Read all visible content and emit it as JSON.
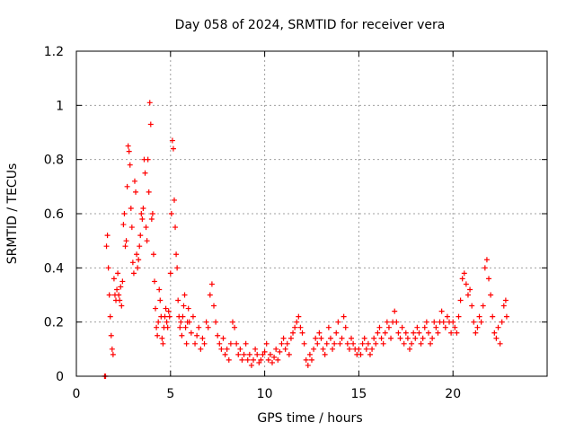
{
  "chart_data": {
    "type": "scatter",
    "title": "Day 058 of 2024, SRMTID for receiver vera",
    "xlabel": "GPS time / hours",
    "ylabel": "SRMTID / TECUs",
    "xlim": [
      0,
      25
    ],
    "ylim": [
      0,
      1.2
    ],
    "x_ticks": [
      0,
      5,
      10,
      15,
      20
    ],
    "x_tick_labels": [
      "0",
      "5",
      "10",
      "15",
      "20"
    ],
    "y_ticks": [
      0,
      0.2,
      0.4,
      0.6,
      0.8,
      1.0,
      1.2
    ],
    "y_tick_labels": [
      "0",
      "0.2",
      "0.4",
      "0.6",
      "0.8",
      "1",
      "1.2"
    ],
    "grid": true,
    "marker": "+",
    "series": [
      {
        "name": "SRMTID",
        "color": "#ff0000",
        "points": [
          [
            1.5,
            0.0
          ],
          [
            1.55,
            0.0
          ],
          [
            1.6,
            0.48
          ],
          [
            1.65,
            0.52
          ],
          [
            1.7,
            0.4
          ],
          [
            1.75,
            0.3
          ],
          [
            1.8,
            0.22
          ],
          [
            1.85,
            0.15
          ],
          [
            1.9,
            0.1
          ],
          [
            1.95,
            0.08
          ],
          [
            2.0,
            0.36
          ],
          [
            2.05,
            0.3
          ],
          [
            2.1,
            0.28
          ],
          [
            2.15,
            0.32
          ],
          [
            2.2,
            0.38
          ],
          [
            2.25,
            0.3
          ],
          [
            2.3,
            0.28
          ],
          [
            2.35,
            0.33
          ],
          [
            2.4,
            0.26
          ],
          [
            2.45,
            0.35
          ],
          [
            2.5,
            0.56
          ],
          [
            2.55,
            0.6
          ],
          [
            2.6,
            0.48
          ],
          [
            2.65,
            0.5
          ],
          [
            2.7,
            0.7
          ],
          [
            2.75,
            0.85
          ],
          [
            2.8,
            0.83
          ],
          [
            2.85,
            0.78
          ],
          [
            2.9,
            0.62
          ],
          [
            2.95,
            0.55
          ],
          [
            3.0,
            0.42
          ],
          [
            3.05,
            0.38
          ],
          [
            3.1,
            0.72
          ],
          [
            3.15,
            0.68
          ],
          [
            3.2,
            0.45
          ],
          [
            3.25,
            0.4
          ],
          [
            3.3,
            0.43
          ],
          [
            3.35,
            0.48
          ],
          [
            3.4,
            0.52
          ],
          [
            3.45,
            0.6
          ],
          [
            3.5,
            0.58
          ],
          [
            3.55,
            0.62
          ],
          [
            3.6,
            0.8
          ],
          [
            3.65,
            0.75
          ],
          [
            3.7,
            0.55
          ],
          [
            3.75,
            0.5
          ],
          [
            3.8,
            0.8
          ],
          [
            3.85,
            0.68
          ],
          [
            3.9,
            1.01
          ],
          [
            3.95,
            0.93
          ],
          [
            4.0,
            0.58
          ],
          [
            4.05,
            0.6
          ],
          [
            4.1,
            0.45
          ],
          [
            4.15,
            0.35
          ],
          [
            4.2,
            0.25
          ],
          [
            4.25,
            0.18
          ],
          [
            4.3,
            0.15
          ],
          [
            4.35,
            0.2
          ],
          [
            4.4,
            0.32
          ],
          [
            4.45,
            0.28
          ],
          [
            4.5,
            0.22
          ],
          [
            4.55,
            0.14
          ],
          [
            4.6,
            0.12
          ],
          [
            4.65,
            0.18
          ],
          [
            4.7,
            0.22
          ],
          [
            4.75,
            0.25
          ],
          [
            4.8,
            0.2
          ],
          [
            4.85,
            0.18
          ],
          [
            4.9,
            0.24
          ],
          [
            4.95,
            0.22
          ],
          [
            5.0,
            0.38
          ],
          [
            5.05,
            0.6
          ],
          [
            5.1,
            0.87
          ],
          [
            5.15,
            0.84
          ],
          [
            5.2,
            0.65
          ],
          [
            5.25,
            0.55
          ],
          [
            5.3,
            0.45
          ],
          [
            5.35,
            0.4
          ],
          [
            5.4,
            0.28
          ],
          [
            5.45,
            0.22
          ],
          [
            5.5,
            0.18
          ],
          [
            5.55,
            0.2
          ],
          [
            5.6,
            0.15
          ],
          [
            5.65,
            0.22
          ],
          [
            5.7,
            0.26
          ],
          [
            5.75,
            0.3
          ],
          [
            5.8,
            0.18
          ],
          [
            5.85,
            0.12
          ],
          [
            5.9,
            0.2
          ],
          [
            5.95,
            0.25
          ],
          [
            6.0,
            0.2
          ],
          [
            6.1,
            0.16
          ],
          [
            6.2,
            0.22
          ],
          [
            6.3,
            0.12
          ],
          [
            6.4,
            0.15
          ],
          [
            6.5,
            0.18
          ],
          [
            6.6,
            0.1
          ],
          [
            6.7,
            0.14
          ],
          [
            6.8,
            0.12
          ],
          [
            6.9,
            0.2
          ],
          [
            7.0,
            0.18
          ],
          [
            7.1,
            0.3
          ],
          [
            7.2,
            0.34
          ],
          [
            7.3,
            0.26
          ],
          [
            7.4,
            0.2
          ],
          [
            7.5,
            0.15
          ],
          [
            7.6,
            0.12
          ],
          [
            7.7,
            0.1
          ],
          [
            7.8,
            0.14
          ],
          [
            7.9,
            0.08
          ],
          [
            8.0,
            0.1
          ],
          [
            8.1,
            0.06
          ],
          [
            8.2,
            0.12
          ],
          [
            8.3,
            0.2
          ],
          [
            8.4,
            0.18
          ],
          [
            8.5,
            0.12
          ],
          [
            8.6,
            0.08
          ],
          [
            8.7,
            0.1
          ],
          [
            8.8,
            0.06
          ],
          [
            8.9,
            0.08
          ],
          [
            9.0,
            0.12
          ],
          [
            9.1,
            0.06
          ],
          [
            9.2,
            0.08
          ],
          [
            9.3,
            0.04
          ],
          [
            9.4,
            0.06
          ],
          [
            9.5,
            0.1
          ],
          [
            9.6,
            0.08
          ],
          [
            9.7,
            0.05
          ],
          [
            9.8,
            0.06
          ],
          [
            9.9,
            0.08
          ],
          [
            10.0,
            0.09
          ],
          [
            10.1,
            0.12
          ],
          [
            10.2,
            0.06
          ],
          [
            10.3,
            0.08
          ],
          [
            10.4,
            0.05
          ],
          [
            10.5,
            0.07
          ],
          [
            10.6,
            0.1
          ],
          [
            10.7,
            0.06
          ],
          [
            10.8,
            0.09
          ],
          [
            10.9,
            0.12
          ],
          [
            11.0,
            0.14
          ],
          [
            11.1,
            0.1
          ],
          [
            11.2,
            0.12
          ],
          [
            11.3,
            0.08
          ],
          [
            11.4,
            0.14
          ],
          [
            11.5,
            0.16
          ],
          [
            11.6,
            0.18
          ],
          [
            11.7,
            0.2
          ],
          [
            11.8,
            0.22
          ],
          [
            11.9,
            0.18
          ],
          [
            12.0,
            0.16
          ],
          [
            12.1,
            0.12
          ],
          [
            12.2,
            0.06
          ],
          [
            12.3,
            0.04
          ],
          [
            12.4,
            0.08
          ],
          [
            12.5,
            0.06
          ],
          [
            12.6,
            0.1
          ],
          [
            12.7,
            0.14
          ],
          [
            12.8,
            0.12
          ],
          [
            12.9,
            0.16
          ],
          [
            13.0,
            0.14
          ],
          [
            13.1,
            0.1
          ],
          [
            13.2,
            0.08
          ],
          [
            13.3,
            0.12
          ],
          [
            13.4,
            0.18
          ],
          [
            13.5,
            0.14
          ],
          [
            13.6,
            0.1
          ],
          [
            13.7,
            0.12
          ],
          [
            13.8,
            0.16
          ],
          [
            13.9,
            0.2
          ],
          [
            14.0,
            0.12
          ],
          [
            14.1,
            0.14
          ],
          [
            14.2,
            0.22
          ],
          [
            14.3,
            0.18
          ],
          [
            14.4,
            0.12
          ],
          [
            14.5,
            0.1
          ],
          [
            14.6,
            0.14
          ],
          [
            14.7,
            0.12
          ],
          [
            14.8,
            0.1
          ],
          [
            14.9,
            0.08
          ],
          [
            15.0,
            0.1
          ],
          [
            15.1,
            0.08
          ],
          [
            15.2,
            0.12
          ],
          [
            15.3,
            0.14
          ],
          [
            15.4,
            0.1
          ],
          [
            15.5,
            0.12
          ],
          [
            15.6,
            0.08
          ],
          [
            15.7,
            0.1
          ],
          [
            15.8,
            0.14
          ],
          [
            15.9,
            0.12
          ],
          [
            16.0,
            0.16
          ],
          [
            16.1,
            0.18
          ],
          [
            16.2,
            0.14
          ],
          [
            16.3,
            0.12
          ],
          [
            16.4,
            0.16
          ],
          [
            16.5,
            0.2
          ],
          [
            16.6,
            0.18
          ],
          [
            16.7,
            0.14
          ],
          [
            16.8,
            0.2
          ],
          [
            16.9,
            0.24
          ],
          [
            17.0,
            0.2
          ],
          [
            17.1,
            0.16
          ],
          [
            17.2,
            0.14
          ],
          [
            17.3,
            0.18
          ],
          [
            17.4,
            0.12
          ],
          [
            17.5,
            0.16
          ],
          [
            17.6,
            0.14
          ],
          [
            17.7,
            0.1
          ],
          [
            17.8,
            0.12
          ],
          [
            17.9,
            0.16
          ],
          [
            18.0,
            0.14
          ],
          [
            18.1,
            0.18
          ],
          [
            18.2,
            0.16
          ],
          [
            18.3,
            0.12
          ],
          [
            18.4,
            0.14
          ],
          [
            18.5,
            0.18
          ],
          [
            18.6,
            0.2
          ],
          [
            18.7,
            0.16
          ],
          [
            18.8,
            0.12
          ],
          [
            18.9,
            0.14
          ],
          [
            19.0,
            0.2
          ],
          [
            19.1,
            0.18
          ],
          [
            19.2,
            0.16
          ],
          [
            19.3,
            0.2
          ],
          [
            19.4,
            0.24
          ],
          [
            19.5,
            0.2
          ],
          [
            19.6,
            0.18
          ],
          [
            19.7,
            0.22
          ],
          [
            19.8,
            0.2
          ],
          [
            19.9,
            0.16
          ],
          [
            20.0,
            0.2
          ],
          [
            20.1,
            0.18
          ],
          [
            20.2,
            0.16
          ],
          [
            20.3,
            0.22
          ],
          [
            20.4,
            0.28
          ],
          [
            20.5,
            0.36
          ],
          [
            20.6,
            0.38
          ],
          [
            20.7,
            0.34
          ],
          [
            20.8,
            0.3
          ],
          [
            20.9,
            0.32
          ],
          [
            21.0,
            0.26
          ],
          [
            21.1,
            0.2
          ],
          [
            21.2,
            0.16
          ],
          [
            21.3,
            0.18
          ],
          [
            21.4,
            0.22
          ],
          [
            21.5,
            0.2
          ],
          [
            21.6,
            0.26
          ],
          [
            21.7,
            0.4
          ],
          [
            21.8,
            0.43
          ],
          [
            21.9,
            0.36
          ],
          [
            22.0,
            0.3
          ],
          [
            22.1,
            0.22
          ],
          [
            22.2,
            0.16
          ],
          [
            22.3,
            0.14
          ],
          [
            22.4,
            0.18
          ],
          [
            22.5,
            0.12
          ],
          [
            22.6,
            0.2
          ],
          [
            22.7,
            0.26
          ],
          [
            22.8,
            0.28
          ],
          [
            22.85,
            0.22
          ]
        ]
      }
    ]
  }
}
